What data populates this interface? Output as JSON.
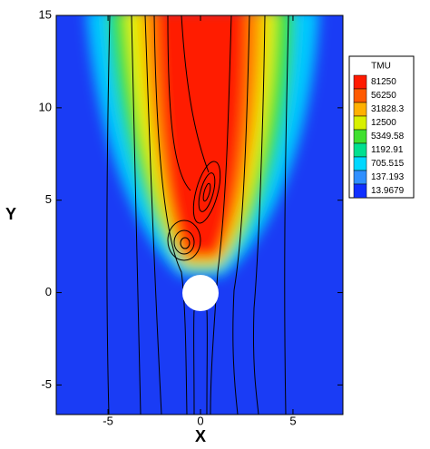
{
  "chart_data": {
    "type": "contour",
    "xlabel": "X",
    "ylabel": "Y",
    "xlim": [
      -7.8,
      7.7
    ],
    "ylim": [
      -6.6,
      15
    ],
    "xticks": [
      -5,
      0,
      5
    ],
    "yticks": [
      -5,
      0,
      5,
      10,
      15
    ],
    "colorbar": {
      "title": "TMU",
      "levels": [
        81250,
        56250,
        31828.3,
        12500,
        5349.58,
        1192.91,
        705.515,
        137.193,
        13.9679
      ],
      "colors": [
        "#ff1a00",
        "#ff5a00",
        "#ffb000",
        "#d8f000",
        "#40e030",
        "#00e090",
        "#00d8ff",
        "#3090ff",
        "#1030ff"
      ]
    }
  }
}
